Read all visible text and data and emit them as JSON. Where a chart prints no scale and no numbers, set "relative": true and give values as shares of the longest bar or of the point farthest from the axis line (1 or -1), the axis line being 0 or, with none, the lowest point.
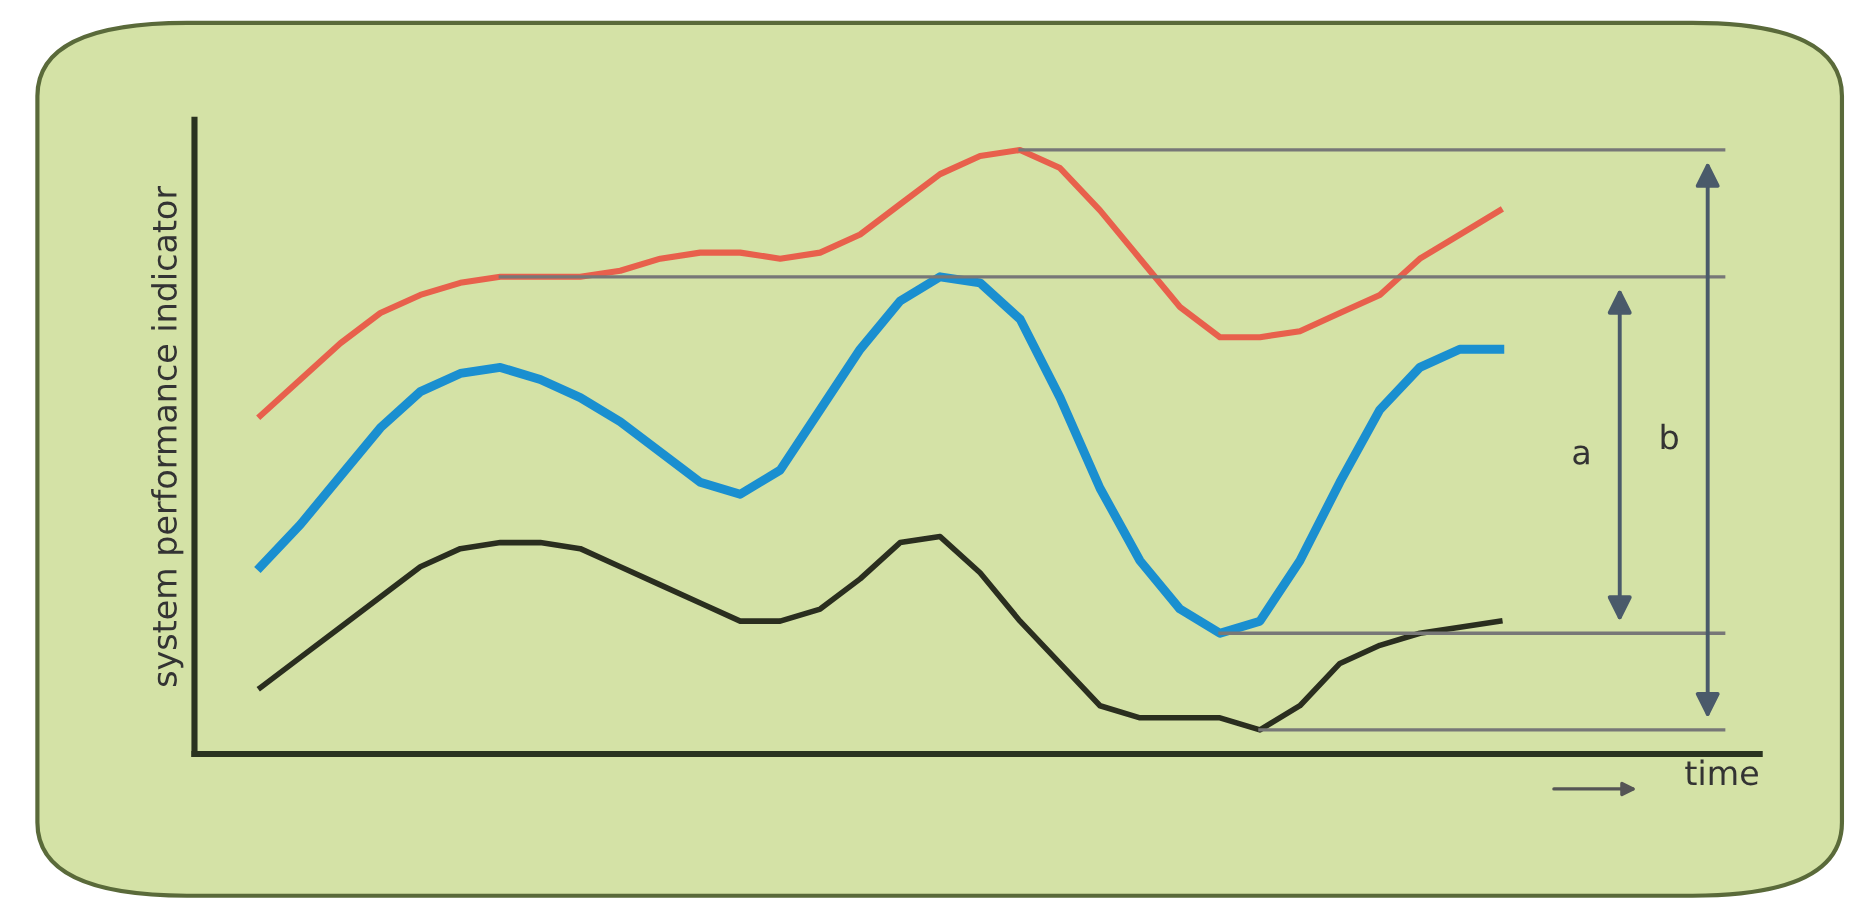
{
  "chart_data": {
    "type": "line",
    "relative": true,
    "ylabel": "system performance indicator",
    "xlabel": "time",
    "categories": [
      null,
      null,
      null,
      null,
      null,
      null,
      null,
      null,
      null,
      null,
      null,
      null,
      null,
      null,
      null,
      null,
      null,
      null,
      null,
      null,
      null,
      null,
      null,
      null,
      null,
      null,
      null,
      null,
      null,
      null,
      null,
      null
    ],
    "series": [
      {
        "color": "#e8604c",
        "values": [
          0.56,
          0.62,
          0.68,
          0.73,
          0.76,
          0.78,
          0.79,
          0.79,
          0.79,
          0.8,
          0.82,
          0.83,
          0.83,
          0.82,
          0.83,
          0.86,
          0.91,
          0.96,
          0.99,
          1,
          0.97,
          0.9,
          0.82,
          0.74,
          0.69,
          0.69,
          0.7,
          0.73,
          0.76,
          0.82,
          0.86,
          0.9
        ]
      },
      {
        "color": "#1a8fd0",
        "values": [
          0.31,
          0.38,
          0.46,
          0.54,
          0.6,
          0.63,
          0.64,
          0.62,
          0.59,
          0.55,
          0.5,
          0.45,
          0.43,
          0.47,
          0.57,
          0.67,
          0.75,
          0.79,
          0.78,
          0.72,
          0.59,
          0.44,
          0.32,
          0.24,
          0.2,
          0.22,
          0.32,
          0.45,
          0.57,
          0.64,
          0.67,
          0.67
        ]
      },
      {
        "color": "#2a2e1f",
        "values": [
          0.11,
          0.16,
          0.21,
          0.26,
          0.31,
          0.34,
          0.35,
          0.35,
          0.34,
          0.31,
          0.28,
          0.25,
          0.22,
          0.22,
          0.24,
          0.29,
          0.35,
          0.36,
          0.3,
          0.22,
          0.15,
          0.08,
          0.06,
          0.06,
          0.06,
          0.04,
          0.08,
          0.15,
          0.18,
          0.2,
          0.21,
          0.22
        ]
      }
    ],
    "annotations": [
      "a",
      "b"
    ],
    "ref_lines": [
      {
        "axis": "y",
        "value": 1,
        "color": "#777777"
      },
      {
        "axis": "y",
        "value": 0.79,
        "color": "#777777"
      },
      {
        "axis": "y",
        "value": 0.2,
        "color": "#777777"
      },
      {
        "axis": "y",
        "value": 0.04,
        "color": "#777777"
      }
    ],
    "legend": false,
    "marker": "none",
    "line_style": "solid"
  }
}
